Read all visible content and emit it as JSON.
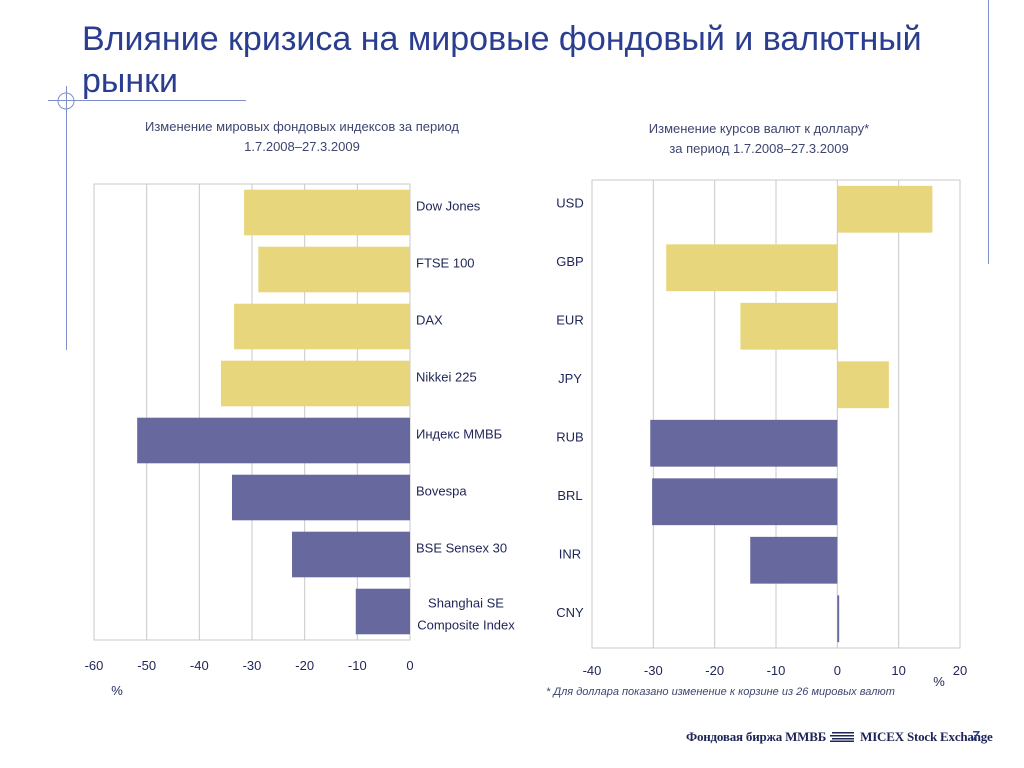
{
  "slide": {
    "title": "Влияние кризиса на мировые фондовый и валютный рынки",
    "footnote": "* Для доллара показано изменение к корзине из 26 мировых валют",
    "footer_left": "Фондовая биржа ММВБ",
    "footer_right": "MICEX Stock Exchange",
    "page_number": "7"
  },
  "colors": {
    "title": "#2a3d8f",
    "bar_yellow": "#e8d67c",
    "bar_purple": "#66689e",
    "grid": "#c8c8c8",
    "deco_line": "#7f8fc8"
  },
  "chart_data": [
    {
      "type": "bar",
      "orientation": "horizontal",
      "title": "Изменение мировых фондовых индексов за период",
      "subtitle": "1.7.2008–27.3.2009",
      "unit": "%",
      "categories": [
        "Dow Jones",
        "FTSE 100",
        "DAX",
        "Nikkei 225",
        "Индекс ММВБ",
        "Bovespa",
        "BSE Sensex 30",
        "Shanghai SE Composite Index"
      ],
      "values": [
        -31.5,
        -28.8,
        -33.4,
        -35.9,
        -51.8,
        -33.8,
        -22.4,
        -10.3
      ],
      "bar_colors": [
        "yellow",
        "yellow",
        "yellow",
        "yellow",
        "purple",
        "purple",
        "purple",
        "purple"
      ],
      "xlim": [
        -60,
        0
      ],
      "ticks": [
        "-60",
        "-50",
        "-40",
        "-30",
        "-20",
        "-10",
        "0"
      ],
      "grid": true
    },
    {
      "type": "bar",
      "orientation": "horizontal",
      "title": "Изменение курсов валют к доллару*",
      "subtitle": "за период 1.7.2008–27.3.2009",
      "unit": "%",
      "categories": [
        "USD",
        "GBP",
        "EUR",
        "JPY",
        "RUB",
        "BRL",
        "INR",
        "CNY"
      ],
      "values": [
        15.5,
        -27.9,
        -15.8,
        8.4,
        -30.5,
        -30.2,
        -14.2,
        0.3
      ],
      "bar_colors": [
        "yellow",
        "yellow",
        "yellow",
        "yellow",
        "purple",
        "purple",
        "purple",
        "purple"
      ],
      "xlim": [
        -40,
        20
      ],
      "ticks": [
        "-40",
        "-30",
        "-20",
        "-10",
        "0",
        "10",
        "20"
      ],
      "grid": true
    }
  ]
}
